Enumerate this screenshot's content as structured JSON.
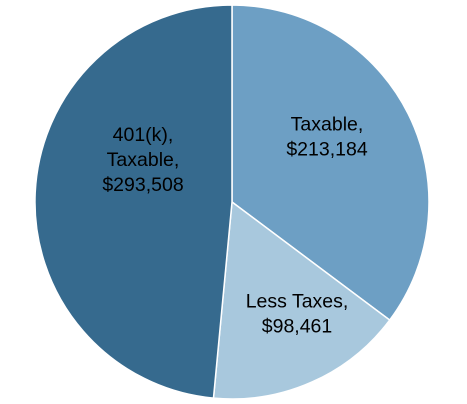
{
  "chart_data": {
    "type": "pie",
    "slices": [
      {
        "label_lines": [
          "Taxable,",
          "$213,184"
        ],
        "value": 213184,
        "color": "#6d9fc4"
      },
      {
        "label_lines": [
          "Less Taxes,",
          "$98,461"
        ],
        "value": 98461,
        "color": "#a8c8dd"
      },
      {
        "label_lines": [
          "401(k),",
          "Taxable,",
          "$293,508"
        ],
        "value": 293508,
        "color": "#366a8e"
      }
    ],
    "start_angle_deg": 0,
    "direction": "clockwise",
    "legend": "none"
  }
}
